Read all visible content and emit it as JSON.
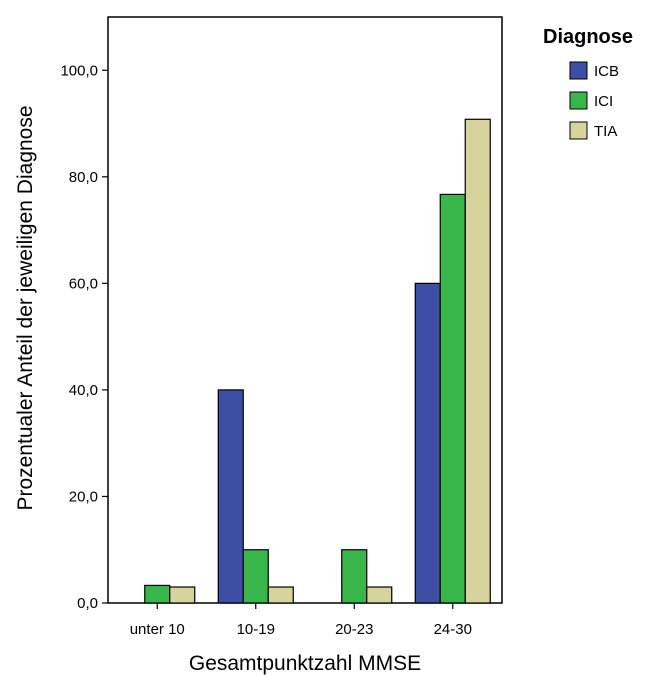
{
  "chart_data": {
    "type": "bar",
    "title": "",
    "xlabel": "Gesamtpunktzahl MMSE",
    "ylabel": "Prozentualer Anteil der jeweiligen Diagnose",
    "categories": [
      "unter 10",
      "10-19",
      "20-23",
      "24-30"
    ],
    "series": [
      {
        "name": "ICB",
        "values": [
          0.0,
          40.0,
          0.0,
          60.0
        ]
      },
      {
        "name": "ICI",
        "values": [
          3.3,
          10.0,
          10.0,
          76.7
        ]
      },
      {
        "name": "TIA",
        "values": [
          3.0,
          3.0,
          3.0,
          90.8
        ]
      }
    ],
    "ylim": [
      0,
      110
    ],
    "yticks": [
      "0,0",
      "20,0",
      "40,0",
      "60,0",
      "80,0",
      "100,0"
    ],
    "ytick_values": [
      0,
      20,
      40,
      60,
      80,
      100
    ],
    "grid": false,
    "legend": {
      "title": "Diagnose",
      "placement": "right-top"
    },
    "colors": {
      "ICB": "#3d4fa5",
      "ICI": "#39b64a",
      "TIA": "#d6d39c"
    }
  }
}
